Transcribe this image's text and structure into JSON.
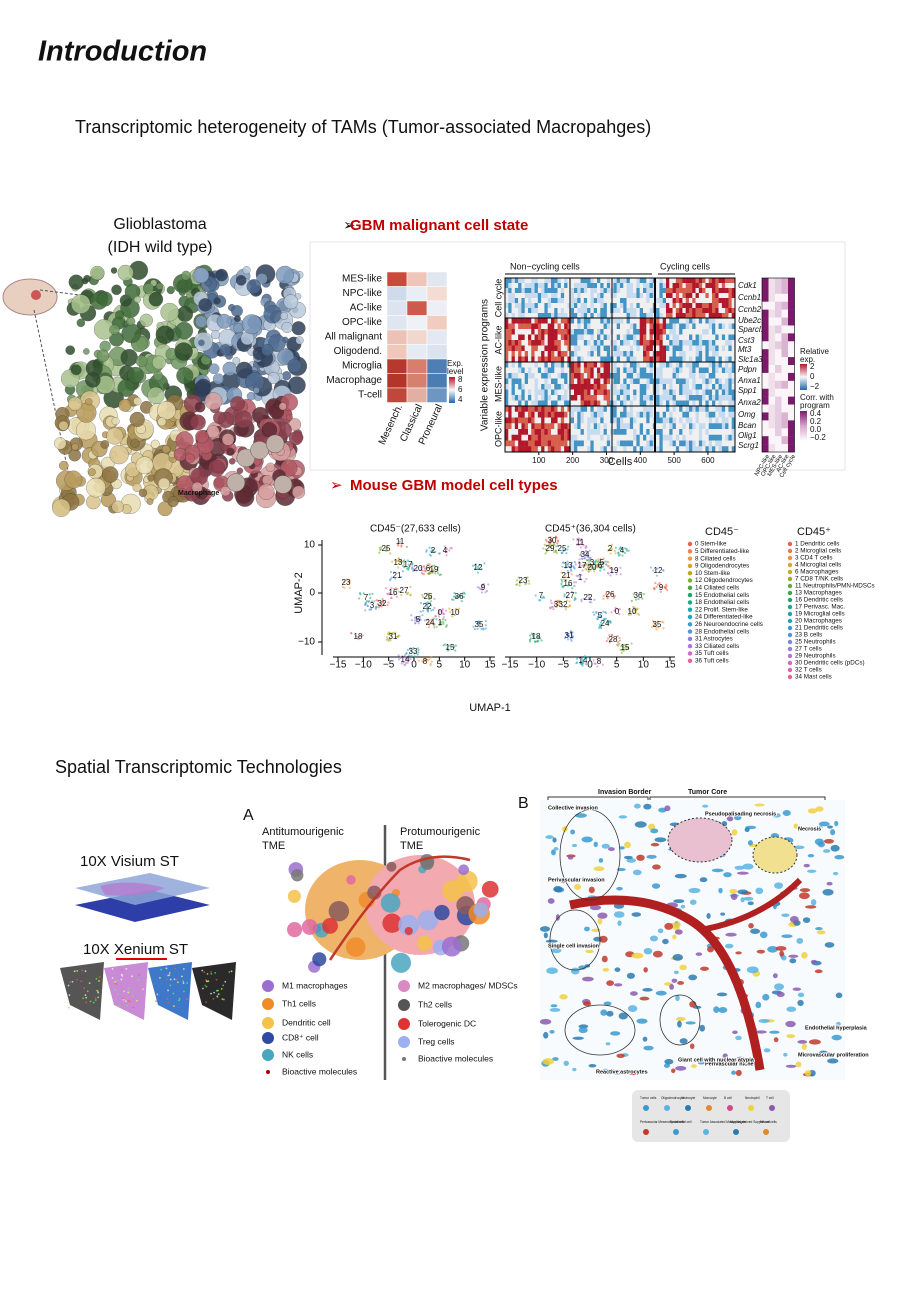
{
  "header": {
    "title": "Introduction",
    "subtitle": "Transcriptomic heterogeneity of TAMs (Tumor-associated Macropahges)"
  },
  "brain": {
    "title": [
      "Glioblastoma",
      "(IDH wild type)"
    ],
    "label": "Macrophage"
  },
  "state": {
    "heading": "GBM malignant cell state",
    "rows": [
      "MES-like",
      "NPC-like",
      "AC-like",
      "OPC-like",
      "All malignant",
      "Oligodend.",
      "Microglia",
      "Macrophage",
      "T-cell"
    ],
    "columns": [
      "Mesench.",
      "Classical",
      "Proneural"
    ],
    "exp_legend": {
      "title": [
        "Exp.",
        "level"
      ],
      "ticks": [
        "8",
        "6",
        "4"
      ]
    },
    "groups": {
      "noncycling": "Non−cycling cells",
      "cycling": "Cycling cells"
    },
    "ylabel": "Variable expression programs",
    "programs": [
      "Cell cycle",
      "AC-like",
      "MES-like",
      "OPC-like"
    ],
    "genes": [
      "Cdk1",
      "Ccnb1",
      "Ccnb2",
      "Ube2c",
      "Sparcl1",
      "Cst3",
      "Mt3",
      "Slc1a3",
      "Pdpn",
      "Anxa1",
      "Spp1",
      "Anxa2",
      "Omg",
      "Bcan",
      "Olig1",
      "Scrg1"
    ],
    "xticks": [
      "100",
      "200",
      "300",
      "400",
      "500",
      "600"
    ],
    "xlabel": "Cells",
    "side_columns": [
      "NPC-like",
      "OPC-like",
      "MES-like",
      "AC-like",
      "Cell cycle"
    ],
    "rel_legend": {
      "title": [
        "Relative",
        "exp."
      ],
      "ticks": [
        "2",
        "0",
        "−2"
      ]
    },
    "corr_legend": {
      "title": [
        "Corr. with",
        "program"
      ],
      "ticks": [
        "0.4",
        "0.2",
        "0.0",
        "−0.2"
      ]
    }
  },
  "mouse": {
    "heading": "Mouse GBM model cell types",
    "left_title": "CD45⁻(27,633 cells)",
    "right_title": "CD45⁺(36,304 cells)",
    "ylabel": "UMAP-2",
    "xlabel": "UMAP-1",
    "yticks": [
      "10",
      "0",
      "−10"
    ],
    "xticks": [
      "−15",
      "−10",
      "−5",
      "0",
      "5",
      "10",
      "15"
    ],
    "left_clusters": [
      "11",
      "25",
      "2",
      "4",
      "13",
      "17",
      "20",
      "6",
      "19",
      "21",
      "16",
      "27",
      "12",
      "9",
      "23",
      "7",
      "3",
      "32",
      "26",
      "22",
      "0",
      "10",
      "36",
      "5",
      "24",
      "1",
      "35",
      "18",
      "31",
      "33",
      "14",
      "8",
      "15"
    ],
    "right_clusters": [
      "30",
      "29",
      "25",
      "11",
      "2",
      "4",
      "34",
      "5",
      "3",
      "13",
      "17",
      "20",
      "6",
      "19",
      "21",
      "16",
      "12",
      "9",
      "23",
      "7",
      "3",
      "32",
      "27",
      "22",
      "26",
      "36",
      "5",
      "0",
      "10",
      "24",
      "1",
      "35",
      "18",
      "31",
      "28",
      "15",
      "14",
      "8"
    ],
    "neg_legend": {
      "title": "CD45⁻",
      "items": [
        {
          "label": "0 Stem-like",
          "color": "#e8604c"
        },
        {
          "label": "5 Differentiated-like",
          "color": "#f07f4f"
        },
        {
          "label": "8 Ciliated cells",
          "color": "#f29a3b"
        },
        {
          "label": "9 Oligodendrocytes",
          "color": "#d9a520"
        },
        {
          "label": "10 Stem-like",
          "color": "#b6a91f"
        },
        {
          "label": "12 Oligodendrocytes",
          "color": "#7fae2c"
        },
        {
          "label": "14 Ciliated cells",
          "color": "#3ea83e"
        },
        {
          "label": "15 Endothelial cells",
          "color": "#21a464"
        },
        {
          "label": "18 Endothelial cells",
          "color": "#1aa88a"
        },
        {
          "label": "22 Prolif. Stem-like",
          "color": "#19a9a8"
        },
        {
          "label": "24 Differentiated-like",
          "color": "#1fa4c4"
        },
        {
          "label": "26 Neuroendocrine cells",
          "color": "#3b9bd8"
        },
        {
          "label": "28 Endothelial cells",
          "color": "#5b8fe0"
        },
        {
          "label": "31 Astrocytes",
          "color": "#8a7fe0"
        },
        {
          "label": "33 Ciliated cells",
          "color": "#b173d8"
        },
        {
          "label": "35 Tuft cells",
          "color": "#d567c5"
        },
        {
          "label": "36 Tuft cells",
          "color": "#e85fa3"
        }
      ]
    },
    "pos_legend": {
      "title": "CD45⁺",
      "items": [
        {
          "label": "1 Dendritic cells",
          "color": "#e8604c"
        },
        {
          "label": "2 Microglial cells",
          "color": "#ef7845"
        },
        {
          "label": "3 CD4 T  cells",
          "color": "#f1903a"
        },
        {
          "label": "4 Microglial cells",
          "color": "#e2a426"
        },
        {
          "label": "6 Macrophages",
          "color": "#c8aa1f"
        },
        {
          "label": "7 CD8 T/NK cells",
          "color": "#9cad26"
        },
        {
          "label": "11 Neutrophils/PMN-MDSCs",
          "color": "#67ab33"
        },
        {
          "label": "13 Macrophages",
          "color": "#36a84a"
        },
        {
          "label": "16 Dendritic cells",
          "color": "#1fa56d"
        },
        {
          "label": "17 Perivasc. Mac.",
          "color": "#19a78f"
        },
        {
          "label": "19 Microglial cells",
          "color": "#1aa8aa"
        },
        {
          "label": "20 Macrophages",
          "color": "#1fa4c4"
        },
        {
          "label": "21 Dendritic cells",
          "color": "#349cd6"
        },
        {
          "label": "23 B cells",
          "color": "#5592df"
        },
        {
          "label": "25 Neutrophils",
          "color": "#7a86e0"
        },
        {
          "label": "27 T cells",
          "color": "#9b7bdc"
        },
        {
          "label": "29 Neutrophils",
          "color": "#b872d5"
        },
        {
          "label": "30 Dendritic cells (pDCs)",
          "color": "#d468c4"
        },
        {
          "label": "32 T cells",
          "color": "#e462ad"
        },
        {
          "label": "34 Mast cells",
          "color": "#ec5f92"
        }
      ]
    }
  },
  "spatial": {
    "heading": "Spatial Transcriptomic Technologies",
    "visium": "10X Visium ST",
    "xenium": "10X Xenium ST"
  },
  "panel_a": {
    "letter": "A",
    "left_title": [
      "Antitumourigenic",
      "TME"
    ],
    "right_title": [
      "Protumourigenic",
      "TME"
    ],
    "left_legend": [
      "M1 macrophages",
      "Th1 cells",
      "Dendritic cell",
      "CD8⁺ cell",
      "NK cells",
      "Bioactive molecules"
    ],
    "right_legend": [
      "M2 macrophages/ MDSCs",
      "Th2 cells",
      "Tolerogenic DC",
      "Treg cells",
      "Bioactive molecules"
    ]
  },
  "panel_b": {
    "letter": "B",
    "border": "Invasion Border",
    "core": "Tumor Core",
    "labels": [
      "Collective invasion",
      "Pseudopalisading necrosis",
      "Necrosis",
      "Perivascular invasion",
      "Single cell invasion",
      "Endothelial hyperplasia",
      "Microvascular proliferation",
      "Perivascular niche",
      "Giant cell with nuclear atypia",
      "Reactive astrocytes"
    ],
    "legend": [
      "Tumor cells",
      "Oligodendrocyte",
      "Astrocyte",
      "Monocyte",
      "B cell",
      "Neutrophil",
      "T cell",
      "Perivascular Mesenchymal cell",
      "Endothelial cell",
      "Tumor Associated Macrophages",
      "Myeloid derived Suppressor cells",
      "NK cell"
    ]
  }
}
